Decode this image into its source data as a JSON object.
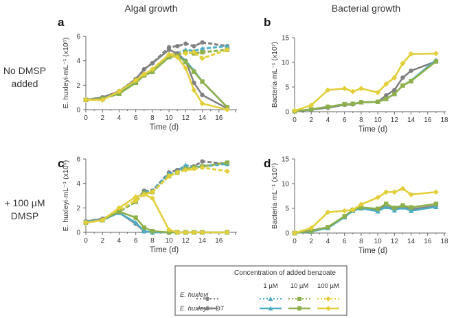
{
  "column_titles": [
    "Algal growth",
    "Bacterial growth"
  ],
  "row_labels": [
    [
      "No DMSP",
      "added"
    ],
    [
      "+ 100 µM",
      "DMSP"
    ]
  ],
  "colors": {
    "none": "#808080",
    "1uM": "#4bacc6",
    "10uM": "#8db04a",
    "100uM": "#e3cf3a"
  },
  "legend": {
    "title": "Concentration of added benzoate",
    "columns": [
      "",
      "1 µM",
      "10 µM",
      "100 µM"
    ],
    "rows": [
      {
        "label_italic": "E. huxleyi",
        "label_suffix": "",
        "style": "dotted"
      },
      {
        "label_italic": "E. huxleyi",
        "label_suffix": " + D7",
        "style": "solid"
      }
    ],
    "markers": [
      "circle",
      "triangle",
      "square",
      "diamond"
    ]
  },
  "chart_data": [
    {
      "panel": "a",
      "type": "line",
      "xlabel": "Time (d)",
      "ylabel": "E. huxleyi·mL⁻¹ (x10⁶)",
      "xlim": [
        0,
        18
      ],
      "ylim": [
        0,
        6
      ],
      "xticks": [
        0,
        2,
        4,
        6,
        8,
        10,
        12,
        14,
        16
      ],
      "yticks": [
        0,
        2,
        4,
        6
      ],
      "x": [
        0,
        2,
        4,
        6,
        7,
        8,
        10,
        11,
        12,
        13,
        14,
        17
      ],
      "series": [
        {
          "group": "E. huxleyi",
          "conc": "none",
          "style": "dotted",
          "values": [
            0.8,
            1.0,
            1.5,
            2.5,
            3.3,
            3.8,
            5.1,
            5.2,
            5.4,
            5.2,
            5.5,
            5.2
          ]
        },
        {
          "group": "E. huxleyi",
          "conc": "1uM",
          "style": "dotted",
          "values": [
            0.8,
            0.9,
            1.4,
            2.3,
            2.9,
            3.2,
            4.4,
            4.6,
            4.9,
            4.8,
            5.0,
            5.2
          ]
        },
        {
          "group": "E. huxleyi",
          "conc": "10uM",
          "style": "dotted",
          "values": [
            0.8,
            0.9,
            1.3,
            2.2,
            2.8,
            3.1,
            4.3,
            4.5,
            4.7,
            4.6,
            4.7,
            4.9
          ]
        },
        {
          "group": "E. huxleyi",
          "conc": "100uM",
          "style": "dotted",
          "values": [
            0.8,
            0.8,
            1.5,
            2.4,
            2.9,
            3.3,
            4.5,
            4.6,
            4.6,
            4.7,
            4.2,
            4.9
          ]
        },
        {
          "group": "E. huxleyi + D7",
          "conc": "none",
          "style": "solid",
          "values": [
            0.8,
            1.0,
            1.5,
            2.5,
            3.3,
            3.8,
            4.9,
            4.6,
            4.0,
            2.2,
            1.2,
            0.1
          ]
        },
        {
          "group": "E. huxleyi + D7",
          "conc": "1uM",
          "style": "solid",
          "values": [
            0.8,
            0.9,
            1.4,
            2.3,
            2.9,
            3.2,
            4.4,
            4.4,
            4.0,
            3.2,
            2.3,
            0.2
          ]
        },
        {
          "group": "E. huxleyi + D7",
          "conc": "10uM",
          "style": "solid",
          "values": [
            0.8,
            0.9,
            1.3,
            2.2,
            2.8,
            3.1,
            4.3,
            4.4,
            3.9,
            3.1,
            2.3,
            0.2
          ]
        },
        {
          "group": "E. huxleyi + D7",
          "conc": "100uM",
          "style": "solid",
          "values": [
            0.8,
            0.8,
            1.5,
            2.4,
            2.9,
            3.3,
            4.5,
            4.3,
            3.4,
            1.6,
            0.5,
            0.0
          ]
        }
      ]
    },
    {
      "panel": "b",
      "type": "line",
      "xlabel": "Time (d)",
      "ylabel": "Bacteria·mL⁻¹ (x10⁷)",
      "xlim": [
        0,
        18
      ],
      "ylim": [
        0,
        15
      ],
      "xticks": [
        0,
        2,
        4,
        6,
        8,
        10,
        12,
        14,
        16,
        18
      ],
      "yticks": [
        0,
        5,
        10,
        15
      ],
      "x": [
        0,
        2,
        4,
        6,
        7,
        8,
        10,
        11,
        12,
        13,
        14,
        17
      ],
      "series": [
        {
          "group": "E. huxleyi + D7",
          "conc": "none",
          "style": "solid",
          "values": [
            0.1,
            0.4,
            0.8,
            1.4,
            1.5,
            1.9,
            2.0,
            3.3,
            4.4,
            6.9,
            8.3,
            10.2
          ]
        },
        {
          "group": "E. huxleyi + D7",
          "conc": "1uM",
          "style": "solid",
          "values": [
            0.1,
            0.5,
            1.0,
            1.5,
            1.6,
            1.9,
            2.0,
            2.6,
            3.6,
            5.3,
            6.3,
            10.5
          ]
        },
        {
          "group": "E. huxleyi + D7",
          "conc": "10uM",
          "style": "solid",
          "values": [
            0.1,
            0.5,
            1.0,
            1.5,
            1.6,
            1.9,
            2.0,
            2.6,
            3.6,
            5.3,
            6.2,
            10.2
          ]
        },
        {
          "group": "E. huxleyi + D7",
          "conc": "100uM",
          "style": "solid",
          "values": [
            0.2,
            1.3,
            4.4,
            4.7,
            4.1,
            4.7,
            3.9,
            5.6,
            6.9,
            9.8,
            11.7,
            11.8
          ]
        }
      ]
    },
    {
      "panel": "c",
      "type": "line",
      "xlabel": "Time (d)",
      "ylabel": "E. huxleyi·mL⁻¹ (x10⁶)",
      "xlim": [
        0,
        18
      ],
      "ylim": [
        0,
        6
      ],
      "xticks": [
        0,
        2,
        4,
        6,
        8,
        10,
        12,
        14,
        16
      ],
      "yticks": [
        0,
        2,
        4,
        6
      ],
      "x": [
        0,
        2,
        4,
        6,
        7,
        8,
        10,
        11,
        12,
        13,
        14,
        17
      ],
      "series": [
        {
          "group": "E. huxleyi",
          "conc": "none",
          "style": "dotted",
          "values": [
            0.9,
            1.1,
            1.7,
            2.5,
            3.4,
            3.4,
            4.9,
            5.1,
            5.4,
            5.4,
            5.8,
            5.6
          ]
        },
        {
          "group": "E. huxleyi",
          "conc": "1uM",
          "style": "dotted",
          "values": [
            0.9,
            1.1,
            1.7,
            2.5,
            3.3,
            3.4,
            4.8,
            5.0,
            5.5,
            5.3,
            5.4,
            5.6
          ]
        },
        {
          "group": "E. huxleyi",
          "conc": "10uM",
          "style": "dotted",
          "values": [
            0.8,
            1.0,
            1.7,
            2.5,
            3.2,
            3.3,
            4.6,
            4.9,
            5.2,
            5.3,
            5.4,
            5.7
          ]
        },
        {
          "group": "E. huxleyi",
          "conc": "100uM",
          "style": "dotted",
          "values": [
            0.8,
            1.0,
            1.8,
            2.6,
            3.1,
            3.3,
            4.6,
            4.9,
            5.1,
            5.2,
            5.3,
            5.0
          ]
        },
        {
          "group": "E. huxleyi + D7",
          "conc": "none",
          "style": "solid",
          "values": [
            0.9,
            1.1,
            1.6,
            0.7,
            0.1,
            0,
            0,
            0,
            0,
            0,
            0,
            0
          ]
        },
        {
          "group": "E. huxleyi + D7",
          "conc": "1uM",
          "style": "solid",
          "values": [
            0.9,
            1.0,
            1.6,
            0.8,
            0.1,
            0,
            0,
            0,
            0,
            0,
            0,
            0
          ]
        },
        {
          "group": "E. huxleyi + D7",
          "conc": "10uM",
          "style": "solid",
          "values": [
            0.8,
            1.0,
            1.7,
            1.2,
            0.4,
            0.1,
            0,
            0,
            0,
            0,
            0,
            0
          ]
        },
        {
          "group": "E. huxleyi + D7",
          "conc": "100uM",
          "style": "solid",
          "values": [
            0.8,
            1.0,
            2.0,
            2.9,
            3.1,
            2.8,
            0.2,
            0,
            0,
            0,
            0,
            0
          ]
        }
      ]
    },
    {
      "panel": "d",
      "type": "line",
      "xlabel": "Time (d)",
      "ylabel": "Bacteria·mL⁻¹ (x10⁷)",
      "xlim": [
        0,
        18
      ],
      "ylim": [
        0,
        15
      ],
      "xticks": [
        0,
        2,
        4,
        6,
        8,
        10,
        12,
        14,
        16,
        18
      ],
      "yticks": [
        0,
        5,
        10,
        15
      ],
      "x": [
        0,
        2,
        4,
        6,
        7,
        8,
        10,
        11,
        12,
        13,
        14,
        17
      ],
      "series": [
        {
          "group": "E. huxleyi + D7",
          "conc": "none",
          "style": "solid",
          "values": [
            0,
            0.5,
            1.2,
            3.3,
            4.6,
            5.2,
            4.8,
            5.4,
            4.8,
            5.4,
            4.8,
            5.5
          ]
        },
        {
          "group": "E. huxleyi + D7",
          "conc": "1uM",
          "style": "solid",
          "values": [
            0,
            0.3,
            1.0,
            3.2,
            4.5,
            5.0,
            4.4,
            5.3,
            4.6,
            5.2,
            4.5,
            5.3
          ]
        },
        {
          "group": "E. huxleyi + D7",
          "conc": "10uM",
          "style": "solid",
          "values": [
            0,
            0.4,
            1.2,
            3.4,
            4.7,
            5.2,
            4.9,
            5.9,
            5.1,
            5.6,
            5.2,
            5.9
          ]
        },
        {
          "group": "E. huxleyi + D7",
          "conc": "100uM",
          "style": "solid",
          "values": [
            0,
            1.0,
            4.2,
            4.5,
            4.7,
            5.8,
            7.2,
            8.3,
            8.3,
            9.0,
            7.8,
            8.3
          ]
        }
      ]
    }
  ]
}
